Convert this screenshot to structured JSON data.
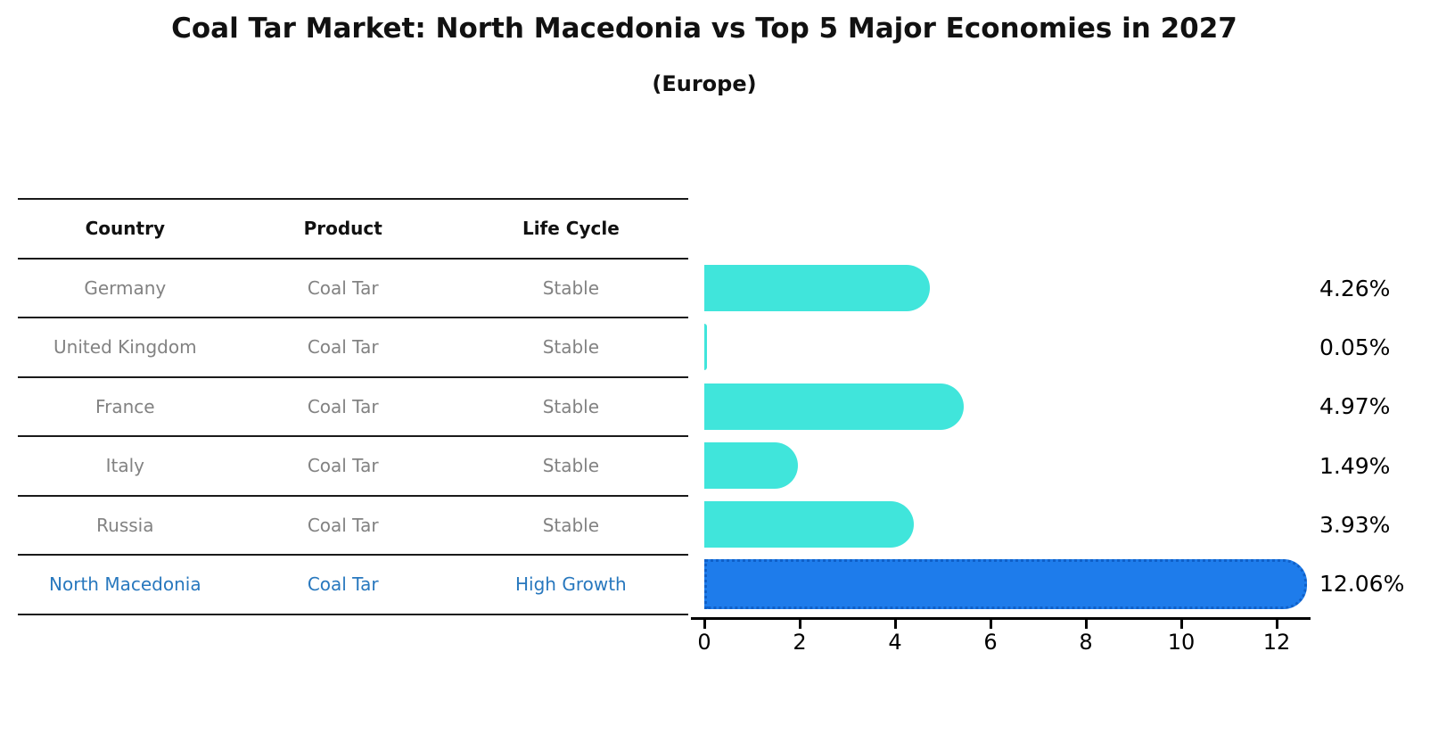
{
  "header": {
    "title": "Coal Tar Market: North Macedonia vs Top 5 Major Economies in 2027",
    "subtitle": "(Europe)"
  },
  "table": {
    "columns": [
      "Country",
      "Product",
      "Life Cycle"
    ],
    "rows": [
      {
        "country": "Germany",
        "product": "Coal Tar",
        "life_cycle": "Stable"
      },
      {
        "country": "United Kingdom",
        "product": "Coal Tar",
        "life_cycle": "Stable"
      },
      {
        "country": "France",
        "product": "Coal Tar",
        "life_cycle": "Stable"
      },
      {
        "country": "Italy",
        "product": "Coal Tar",
        "life_cycle": "Stable"
      },
      {
        "country": "Russia",
        "product": "Coal Tar",
        "life_cycle": "Stable"
      },
      {
        "country": "North Macedonia",
        "product": "Coal Tar",
        "life_cycle": "High Growth"
      }
    ]
  },
  "chart_data": {
    "type": "bar",
    "orientation": "horizontal",
    "title": "Coal Tar Market: North Macedonia vs Top 5 Major Economies in 2027",
    "subtitle": "(Europe)",
    "categories": [
      "Germany",
      "United Kingdom",
      "France",
      "Italy",
      "Russia",
      "North Macedonia"
    ],
    "values": [
      4.26,
      0.05,
      4.97,
      1.49,
      3.93,
      12.06
    ],
    "value_labels": [
      "4.26%",
      "0.05%",
      "4.97%",
      "1.49%",
      "3.93%",
      "12.06%"
    ],
    "x_ticks": [
      "0",
      "2",
      "4",
      "6",
      "8",
      "10",
      "12"
    ],
    "xlim": [
      0,
      12.7
    ],
    "unit": "percent",
    "grid": false,
    "legend": false,
    "bar_color": "#40e5db",
    "highlight_bar_color": "#1e7ceb",
    "highlight_index": 5
  },
  "colors": {
    "table_text": "#828282",
    "highlight_text": "#2878be",
    "header_text": "#111111",
    "axis": "#000000"
  }
}
